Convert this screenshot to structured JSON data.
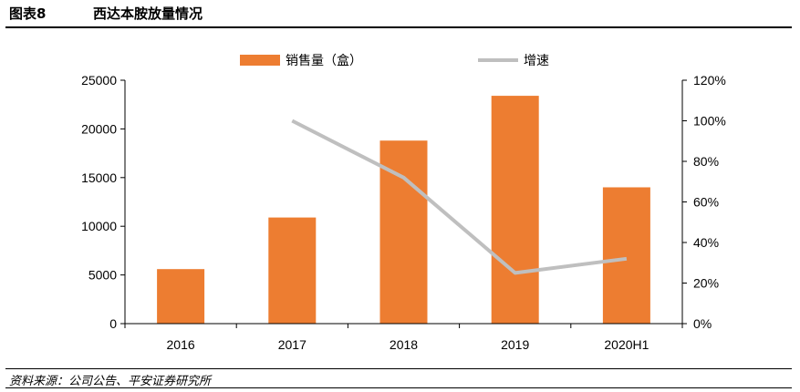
{
  "figure": {
    "label": "图表8",
    "title": "西达本胺放量情况",
    "source": "资料来源：公司公告、平安证券研究所"
  },
  "colors": {
    "bar": "#ED7D31",
    "line": "#BFBFBF",
    "axis": "#000000"
  },
  "chart_data": {
    "type": "bar",
    "categories": [
      "2016",
      "2017",
      "2018",
      "2019",
      "2020H1"
    ],
    "series": [
      {
        "name": "销售量（盒）",
        "type": "bar",
        "axis": "left",
        "values": [
          5600,
          10900,
          18800,
          23400,
          14000
        ]
      },
      {
        "name": "增速",
        "type": "line",
        "axis": "right",
        "values": [
          null,
          1.0,
          0.72,
          0.25,
          0.32
        ]
      }
    ],
    "ylim": [
      0,
      25000
    ],
    "y_ticks": [
      "0",
      "5000",
      "10000",
      "15000",
      "20000",
      "25000"
    ],
    "y2lim": [
      0,
      1.2
    ],
    "y2_ticks": [
      "0%",
      "20%",
      "40%",
      "60%",
      "80%",
      "100%",
      "120%"
    ],
    "legend": "top-center",
    "grid": false
  }
}
